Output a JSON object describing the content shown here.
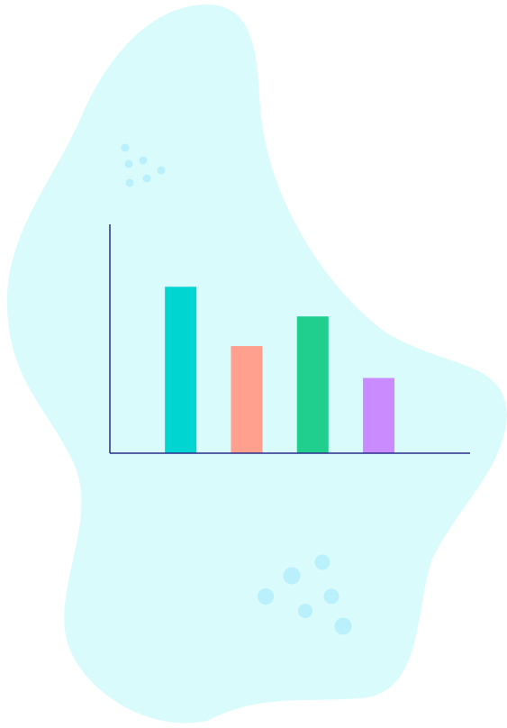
{
  "chart_data": {
    "type": "bar",
    "categories": [
      null,
      null,
      null,
      null
    ],
    "values": [
      73,
      47,
      60,
      33
    ],
    "colors": [
      "#00d5d2",
      "#ff9f8e",
      "#20cf8d",
      "#c98bff"
    ],
    "ylim": [
      0,
      100
    ]
  }
}
